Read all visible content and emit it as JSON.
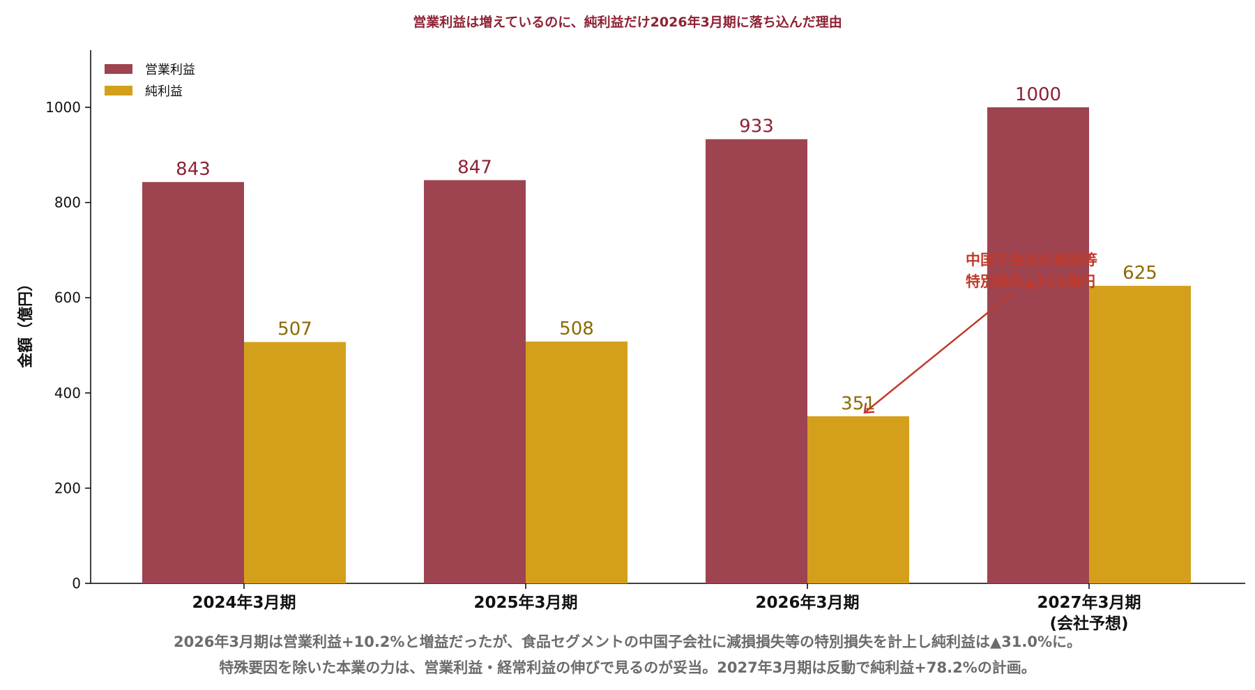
{
  "colors": {
    "operating": "#9E4350",
    "net": "#D4A01B",
    "title": "#8E2235",
    "operating_label": "#8E2235",
    "net_label": "#8C6A00",
    "annotation": "#C0392B",
    "footnote": "#6B6B6B"
  },
  "chart_data": {
    "type": "bar",
    "title": "営業利益は増えているのに、純利益だけ2026年3月期に落ち込んだ理由",
    "ylabel": "金額（億円）",
    "xlabel": "",
    "categories": [
      "2024年3月期",
      "2025年3月期",
      "2026年3月期",
      "2027年3月期\n(会社予想)"
    ],
    "series": [
      {
        "name": "営業利益",
        "values": [
          843,
          847,
          933,
          1000
        ]
      },
      {
        "name": "純利益",
        "values": [
          507,
          508,
          351,
          625
        ]
      }
    ],
    "ylim": [
      0,
      1120
    ],
    "yticks": [
      0,
      200,
      400,
      600,
      800,
      1000
    ],
    "legend": "top-left",
    "grid": false,
    "annotation": {
      "lines": [
        "中国子会社の減損等",
        "特別損失▲315億円"
      ],
      "target_category": 2,
      "target_series": 1
    }
  },
  "footnote": {
    "line1": "2026年3月期は営業利益+10.2%と増益だったが、食品セグメントの中国子会社に減損損失等の特別損失を計上し純利益は▲31.0%に。",
    "line2": "特殊要因を除いた本業の力は、営業利益・経常利益の伸びで見るのが妥当。2027年3月期は反動で純利益+78.2%の計画。"
  }
}
